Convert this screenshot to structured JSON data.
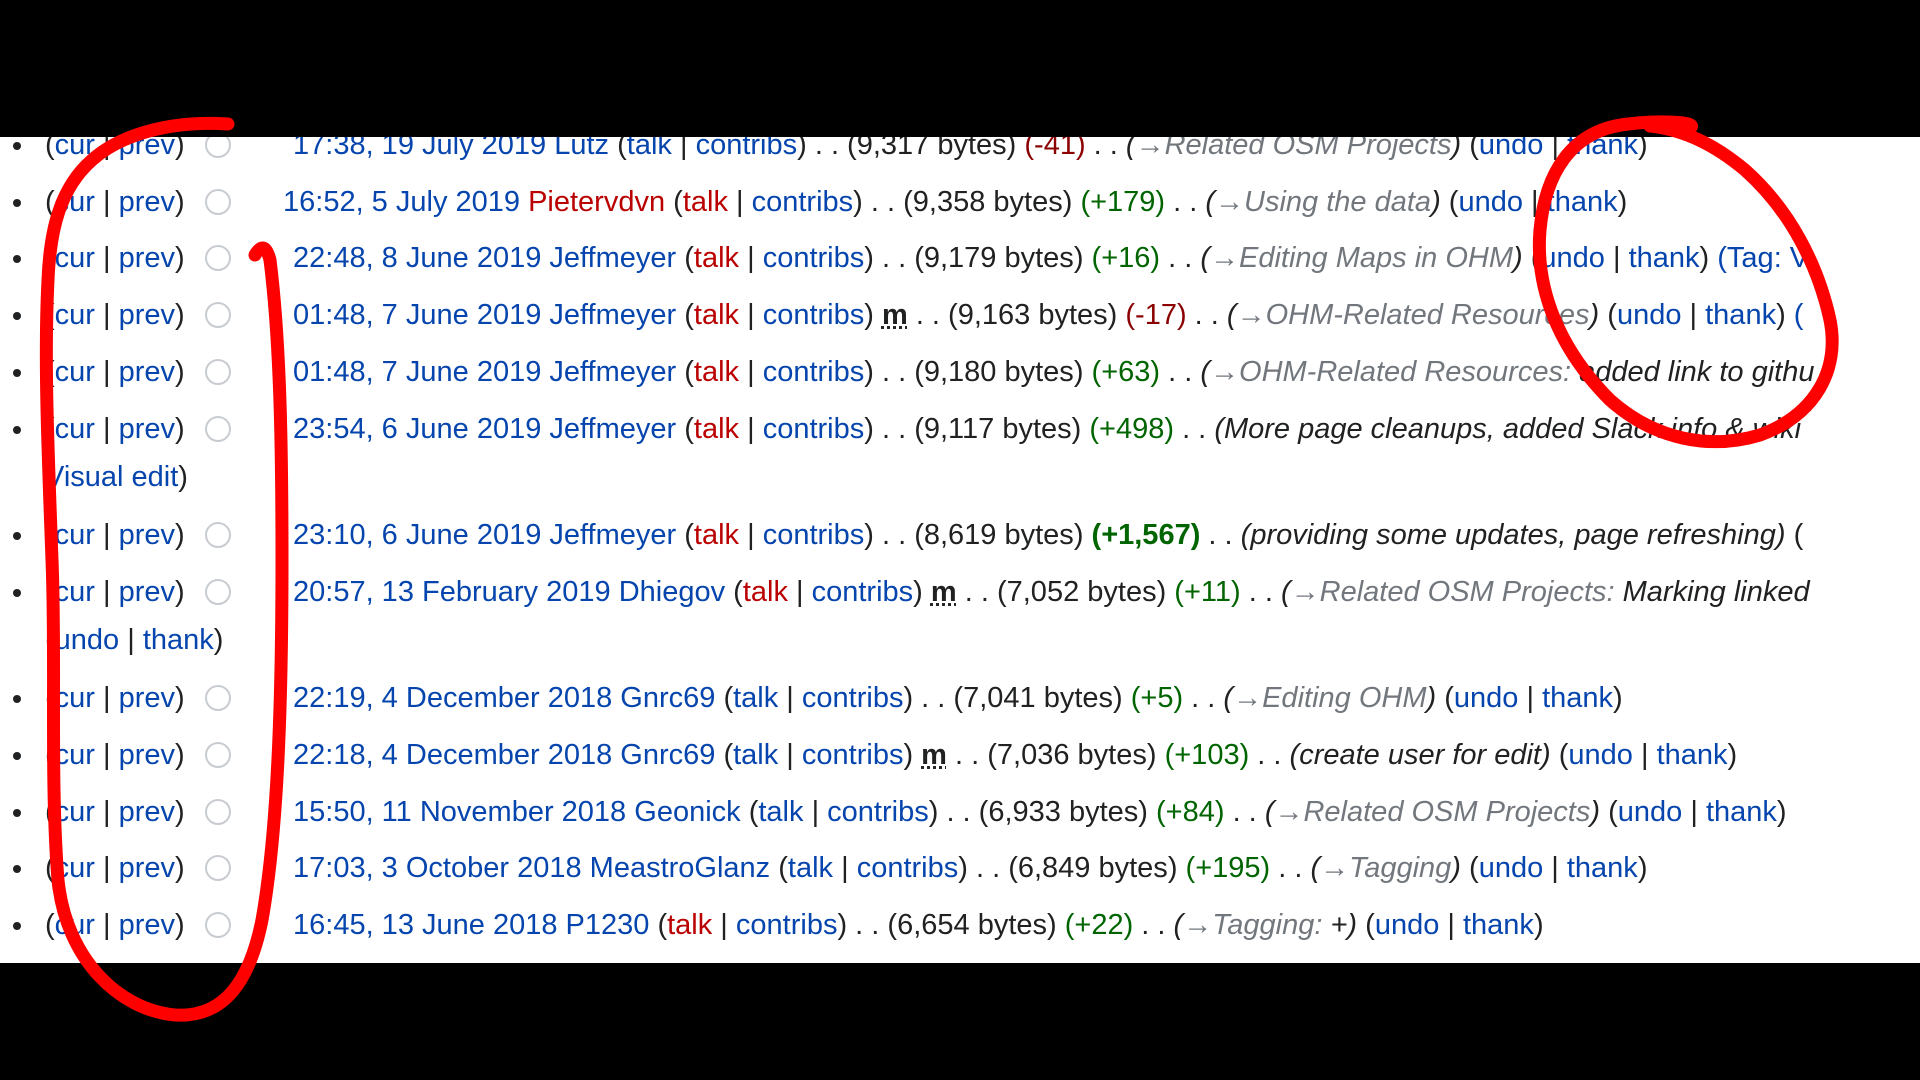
{
  "history": {
    "cur_label": "cur",
    "prev_label": "prev",
    "talk_label": "talk",
    "contribs_label": "contribs",
    "undo_label": "undo",
    "thank_label": "thank",
    "minor_label": "m",
    "entries": [
      {
        "date": "17:38, 19 July 2019",
        "user": "Lutz",
        "user_red": false,
        "talk_red": false,
        "minor": false,
        "bytes": "9,317 bytes",
        "diff": "-41",
        "diff_kind": "neg",
        "arrow": "→",
        "section": "Related OSM Projects",
        "text": "",
        "tail": "(undo | thank)"
      },
      {
        "date": "16:52, 5 July 2019",
        "user": "Pietervdvn",
        "user_red": true,
        "talk_red": true,
        "minor": false,
        "bytes": "9,358 bytes",
        "diff": "+179",
        "diff_kind": "pos",
        "arrow": "→",
        "section": "Using the data",
        "text": "",
        "tail": "(undo | thank)"
      },
      {
        "date": "22:48, 8 June 2019",
        "user": "Jeffmeyer",
        "user_red": false,
        "talk_red": true,
        "minor": false,
        "bytes": "9,179 bytes",
        "diff": "+16",
        "diff_kind": "pos",
        "arrow": "→",
        "section": "Editing Maps in OHM",
        "text": "",
        "tail": "(undo | thank) (Tag: V"
      },
      {
        "date": "01:48, 7 June 2019",
        "user": "Jeffmeyer",
        "user_red": false,
        "talk_red": true,
        "minor": true,
        "bytes": "9,163 bytes",
        "diff": "-17",
        "diff_kind": "neg",
        "arrow": "→",
        "section": "OHM-Related Resources",
        "text": "",
        "tail": "(undo | thank) ("
      },
      {
        "date": "01:48, 7 June 2019",
        "user": "Jeffmeyer",
        "user_red": false,
        "talk_red": true,
        "minor": false,
        "bytes": "9,180 bytes",
        "diff": "+63",
        "diff_kind": "pos",
        "arrow": "→",
        "section": "OHM-Related Resources:",
        "text": " added link to githu",
        "tail": ""
      },
      {
        "date": "23:54, 6 June 2019",
        "user": "Jeffmeyer",
        "user_red": false,
        "talk_red": true,
        "minor": false,
        "bytes": "9,117 bytes",
        "diff": "+498",
        "diff_kind": "pos",
        "arrow": "",
        "section": "",
        "text": "More page cleanups, added Slack info & wiki",
        "tail": "",
        "line2": "Visual edit)"
      },
      {
        "date": "23:10, 6 June 2019",
        "user": "Jeffmeyer",
        "user_red": false,
        "talk_red": true,
        "minor": false,
        "bytes": "8,619 bytes",
        "diff": "+1,567",
        "diff_kind": "posbig",
        "arrow": "",
        "section": "",
        "text": "providing some updates, page refreshing)",
        "tail": " ("
      },
      {
        "date": "20:57, 13 February 2019",
        "user": "Dhiegov",
        "user_red": false,
        "talk_red": true,
        "minor": true,
        "bytes": "7,052 bytes",
        "diff": "+11",
        "diff_kind": "pos",
        "arrow": "→",
        "section": "Related OSM Projects:",
        "text": " Marking linked",
        "tail": "",
        "line2": "(undo | thank)"
      },
      {
        "date": "22:19, 4 December 2018",
        "user": "Gnrc69",
        "user_red": false,
        "talk_red": false,
        "minor": false,
        "bytes": "7,041 bytes",
        "diff": "+5",
        "diff_kind": "pos",
        "arrow": "→",
        "section": "Editing OHM",
        "text": "",
        "tail": "(undo | thank)"
      },
      {
        "date": "22:18, 4 December 2018",
        "user": "Gnrc69",
        "user_red": false,
        "talk_red": false,
        "minor": true,
        "bytes": "7,036 bytes",
        "diff": "+103",
        "diff_kind": "pos",
        "arrow": "",
        "section": "",
        "text": "create user for edit)",
        "tail": "(undo | thank)"
      },
      {
        "date": "15:50, 11 November 2018",
        "user": "Geonick",
        "user_red": false,
        "talk_red": false,
        "minor": false,
        "bytes": "6,933 bytes",
        "diff": "+84",
        "diff_kind": "pos",
        "arrow": "→",
        "section": "Related OSM Projects",
        "text": "",
        "tail": "(undo | thank)"
      },
      {
        "date": "17:03, 3 October 2018",
        "user": "MeastroGlanz",
        "user_red": false,
        "talk_red": false,
        "minor": false,
        "bytes": "6,849 bytes",
        "diff": "+195",
        "diff_kind": "pos",
        "arrow": "→",
        "section": "Tagging",
        "text": "",
        "tail": "(undo | thank)"
      },
      {
        "date": "16:45, 13 June 2018",
        "user": "P1230",
        "user_red": false,
        "talk_red": true,
        "minor": false,
        "bytes": "6,654 bytes",
        "diff": "+22",
        "diff_kind": "pos",
        "arrow": "→",
        "section": "Tagging:",
        "text": " +)",
        "tail": "(undo | thank)"
      }
    ]
  },
  "colors": {
    "link": "#0645ad",
    "redlink": "#ba0000",
    "negative": "#8b0000",
    "positive": "#006400",
    "annotation": "#ff0000",
    "letterbox": "#000000"
  }
}
